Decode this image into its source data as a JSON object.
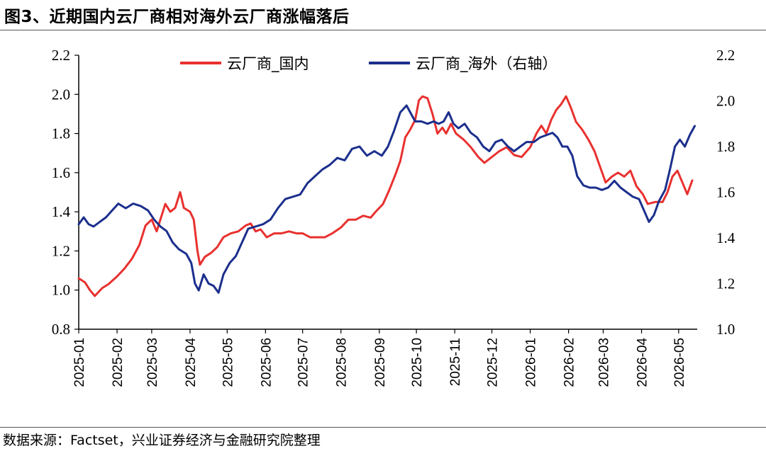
{
  "figure": {
    "title": "图3、近期国内云厂商相对海外云厂商涨幅落后",
    "source": "数据来源：Factset，兴业证券经济与金融研究院整理"
  },
  "chart_data": {
    "type": "line",
    "title": "图3、近期国内云厂商相对海外云厂商涨幅落后",
    "x_categories": [
      "2025-01",
      "2025-02",
      "2025-03",
      "2025-04",
      "2025-05",
      "2025-06",
      "2025-07",
      "2025-08",
      "2025-09",
      "2025-10",
      "2025-11",
      "2025-12",
      "2026-01",
      "2026-02",
      "2026-03",
      "2026-04",
      "2026-05"
    ],
    "y_left": {
      "min": 0.8,
      "max": 2.2,
      "ticks": [
        "0.8",
        "1.0",
        "1.2",
        "1.4",
        "1.6",
        "1.8",
        "2.0",
        "2.2"
      ]
    },
    "y_right": {
      "min": 1.0,
      "max": 2.2,
      "ticks": [
        "1.0",
        "1.2",
        "1.4",
        "1.6",
        "1.8",
        "2.0",
        "2.2"
      ]
    },
    "legend_position": "top-center",
    "grid": false,
    "series": [
      {
        "name": "云厂商_国内",
        "color": "#e8312f",
        "axis": "left",
        "points": [
          [
            "2025-01-01",
            1.06
          ],
          [
            "2025-01-06",
            1.04
          ],
          [
            "2025-01-10",
            1.0
          ],
          [
            "2025-01-14",
            0.97
          ],
          [
            "2025-01-20",
            1.01
          ],
          [
            "2025-01-25",
            1.03
          ],
          [
            "2025-02-01",
            1.07
          ],
          [
            "2025-02-07",
            1.11
          ],
          [
            "2025-02-13",
            1.16
          ],
          [
            "2025-02-19",
            1.23
          ],
          [
            "2025-02-24",
            1.33
          ],
          [
            "2025-03-01",
            1.36
          ],
          [
            "2025-03-05",
            1.3
          ],
          [
            "2025-03-08",
            1.36
          ],
          [
            "2025-03-12",
            1.44
          ],
          [
            "2025-03-16",
            1.4
          ],
          [
            "2025-03-20",
            1.42
          ],
          [
            "2025-03-24",
            1.5
          ],
          [
            "2025-03-27",
            1.42
          ],
          [
            "2025-04-01",
            1.4
          ],
          [
            "2025-04-04",
            1.36
          ],
          [
            "2025-04-07",
            1.2
          ],
          [
            "2025-04-09",
            1.13
          ],
          [
            "2025-04-13",
            1.17
          ],
          [
            "2025-04-18",
            1.19
          ],
          [
            "2025-04-23",
            1.22
          ],
          [
            "2025-04-28",
            1.27
          ],
          [
            "2025-05-04",
            1.29
          ],
          [
            "2025-05-10",
            1.3
          ],
          [
            "2025-05-16",
            1.33
          ],
          [
            "2025-05-20",
            1.34
          ],
          [
            "2025-05-24",
            1.3
          ],
          [
            "2025-05-28",
            1.31
          ],
          [
            "2025-06-02",
            1.27
          ],
          [
            "2025-06-08",
            1.29
          ],
          [
            "2025-06-14",
            1.29
          ],
          [
            "2025-06-20",
            1.3
          ],
          [
            "2025-06-26",
            1.29
          ],
          [
            "2025-07-01",
            1.29
          ],
          [
            "2025-07-07",
            1.27
          ],
          [
            "2025-07-13",
            1.27
          ],
          [
            "2025-07-19",
            1.27
          ],
          [
            "2025-07-25",
            1.29
          ],
          [
            "2025-08-01",
            1.32
          ],
          [
            "2025-08-07",
            1.36
          ],
          [
            "2025-08-13",
            1.36
          ],
          [
            "2025-08-19",
            1.38
          ],
          [
            "2025-08-25",
            1.37
          ],
          [
            "2025-08-29",
            1.4
          ],
          [
            "2025-09-04",
            1.44
          ],
          [
            "2025-09-09",
            1.51
          ],
          [
            "2025-09-14",
            1.59
          ],
          [
            "2025-09-18",
            1.66
          ],
          [
            "2025-09-22",
            1.78
          ],
          [
            "2025-09-26",
            1.82
          ],
          [
            "2025-09-30",
            1.87
          ],
          [
            "2025-10-03",
            1.97
          ],
          [
            "2025-10-06",
            1.99
          ],
          [
            "2025-10-10",
            1.98
          ],
          [
            "2025-10-14",
            1.9
          ],
          [
            "2025-10-18",
            1.8
          ],
          [
            "2025-10-22",
            1.83
          ],
          [
            "2025-10-25",
            1.8
          ],
          [
            "2025-10-29",
            1.85
          ],
          [
            "2025-11-02",
            1.8
          ],
          [
            "2025-11-08",
            1.77
          ],
          [
            "2025-11-14",
            1.73
          ],
          [
            "2025-11-20",
            1.68
          ],
          [
            "2025-11-25",
            1.65
          ],
          [
            "2025-12-01",
            1.68
          ],
          [
            "2025-12-07",
            1.71
          ],
          [
            "2025-12-13",
            1.73
          ],
          [
            "2025-12-19",
            1.69
          ],
          [
            "2025-12-25",
            1.68
          ],
          [
            "2026-01-01",
            1.73
          ],
          [
            "2026-01-06",
            1.8
          ],
          [
            "2026-01-10",
            1.84
          ],
          [
            "2026-01-14",
            1.8
          ],
          [
            "2026-01-18",
            1.87
          ],
          [
            "2026-01-22",
            1.92
          ],
          [
            "2026-01-26",
            1.95
          ],
          [
            "2026-01-30",
            1.99
          ],
          [
            "2026-02-03",
            1.93
          ],
          [
            "2026-02-07",
            1.86
          ],
          [
            "2026-02-12",
            1.82
          ],
          [
            "2026-02-17",
            1.77
          ],
          [
            "2026-02-22",
            1.71
          ],
          [
            "2026-02-27",
            1.62
          ],
          [
            "2026-03-03",
            1.55
          ],
          [
            "2026-03-08",
            1.58
          ],
          [
            "2026-03-13",
            1.6
          ],
          [
            "2026-03-18",
            1.58
          ],
          [
            "2026-03-23",
            1.61
          ],
          [
            "2026-03-28",
            1.53
          ],
          [
            "2026-04-02",
            1.49
          ],
          [
            "2026-04-06",
            1.44
          ],
          [
            "2026-04-12",
            1.45
          ],
          [
            "2026-04-18",
            1.45
          ],
          [
            "2026-04-22",
            1.5
          ],
          [
            "2026-04-26",
            1.58
          ],
          [
            "2026-04-30",
            1.61
          ],
          [
            "2026-05-04",
            1.55
          ],
          [
            "2026-05-08",
            1.49
          ],
          [
            "2026-05-12",
            1.56
          ]
        ]
      },
      {
        "name": "云厂商_海外（右轴）",
        "color": "#1b2f8c",
        "axis": "right",
        "points": [
          [
            "2025-01-01",
            1.46
          ],
          [
            "2025-01-05",
            1.49
          ],
          [
            "2025-01-09",
            1.46
          ],
          [
            "2025-01-13",
            1.45
          ],
          [
            "2025-01-18",
            1.47
          ],
          [
            "2025-01-23",
            1.49
          ],
          [
            "2025-01-28",
            1.52
          ],
          [
            "2025-02-02",
            1.55
          ],
          [
            "2025-02-08",
            1.53
          ],
          [
            "2025-02-14",
            1.55
          ],
          [
            "2025-02-20",
            1.54
          ],
          [
            "2025-02-26",
            1.52
          ],
          [
            "2025-03-03",
            1.48
          ],
          [
            "2025-03-08",
            1.45
          ],
          [
            "2025-03-13",
            1.43
          ],
          [
            "2025-03-18",
            1.38
          ],
          [
            "2025-03-23",
            1.35
          ],
          [
            "2025-03-29",
            1.33
          ],
          [
            "2025-04-02",
            1.29
          ],
          [
            "2025-04-05",
            1.2
          ],
          [
            "2025-04-08",
            1.17
          ],
          [
            "2025-04-12",
            1.24
          ],
          [
            "2025-04-16",
            1.2
          ],
          [
            "2025-04-20",
            1.19
          ],
          [
            "2025-04-24",
            1.16
          ],
          [
            "2025-04-28",
            1.24
          ],
          [
            "2025-05-03",
            1.29
          ],
          [
            "2025-05-08",
            1.32
          ],
          [
            "2025-05-13",
            1.38
          ],
          [
            "2025-05-18",
            1.44
          ],
          [
            "2025-05-24",
            1.45
          ],
          [
            "2025-05-30",
            1.46
          ],
          [
            "2025-06-05",
            1.48
          ],
          [
            "2025-06-11",
            1.53
          ],
          [
            "2025-06-17",
            1.57
          ],
          [
            "2025-06-23",
            1.58
          ],
          [
            "2025-06-29",
            1.59
          ],
          [
            "2025-07-05",
            1.64
          ],
          [
            "2025-07-11",
            1.67
          ],
          [
            "2025-07-17",
            1.7
          ],
          [
            "2025-07-23",
            1.72
          ],
          [
            "2025-07-29",
            1.75
          ],
          [
            "2025-08-04",
            1.74
          ],
          [
            "2025-08-10",
            1.79
          ],
          [
            "2025-08-16",
            1.8
          ],
          [
            "2025-08-22",
            1.76
          ],
          [
            "2025-08-28",
            1.78
          ],
          [
            "2025-09-03",
            1.76
          ],
          [
            "2025-09-08",
            1.8
          ],
          [
            "2025-09-13",
            1.87
          ],
          [
            "2025-09-18",
            1.95
          ],
          [
            "2025-09-23",
            1.98
          ],
          [
            "2025-09-26",
            1.95
          ],
          [
            "2025-09-30",
            1.91
          ],
          [
            "2025-10-05",
            1.91
          ],
          [
            "2025-10-10",
            1.9
          ],
          [
            "2025-10-15",
            1.91
          ],
          [
            "2025-10-19",
            1.9
          ],
          [
            "2025-10-23",
            1.91
          ],
          [
            "2025-10-27",
            1.95
          ],
          [
            "2025-10-31",
            1.9
          ],
          [
            "2025-11-04",
            1.88
          ],
          [
            "2025-11-09",
            1.9
          ],
          [
            "2025-11-14",
            1.86
          ],
          [
            "2025-11-19",
            1.84
          ],
          [
            "2025-11-24",
            1.8
          ],
          [
            "2025-11-29",
            1.78
          ],
          [
            "2025-12-04",
            1.82
          ],
          [
            "2025-12-09",
            1.83
          ],
          [
            "2025-12-14",
            1.8
          ],
          [
            "2025-12-19",
            1.78
          ],
          [
            "2025-12-24",
            1.8
          ],
          [
            "2025-12-29",
            1.82
          ],
          [
            "2026-01-04",
            1.82
          ],
          [
            "2026-01-09",
            1.84
          ],
          [
            "2026-01-14",
            1.85
          ],
          [
            "2026-01-19",
            1.86
          ],
          [
            "2026-01-23",
            1.84
          ],
          [
            "2026-01-27",
            1.8
          ],
          [
            "2026-01-31",
            1.8
          ],
          [
            "2026-02-04",
            1.76
          ],
          [
            "2026-02-08",
            1.67
          ],
          [
            "2026-02-13",
            1.63
          ],
          [
            "2026-02-18",
            1.62
          ],
          [
            "2026-02-23",
            1.62
          ],
          [
            "2026-02-28",
            1.61
          ],
          [
            "2026-03-05",
            1.62
          ],
          [
            "2026-03-10",
            1.65
          ],
          [
            "2026-03-15",
            1.62
          ],
          [
            "2026-03-20",
            1.6
          ],
          [
            "2026-03-25",
            1.58
          ],
          [
            "2026-03-30",
            1.57
          ],
          [
            "2026-04-03",
            1.52
          ],
          [
            "2026-04-07",
            1.47
          ],
          [
            "2026-04-11",
            1.5
          ],
          [
            "2026-04-15",
            1.56
          ],
          [
            "2026-04-20",
            1.61
          ],
          [
            "2026-04-24",
            1.7
          ],
          [
            "2026-04-28",
            1.8
          ],
          [
            "2026-05-02",
            1.83
          ],
          [
            "2026-05-06",
            1.8
          ],
          [
            "2026-05-10",
            1.85
          ],
          [
            "2026-05-14",
            1.89
          ]
        ]
      }
    ]
  }
}
